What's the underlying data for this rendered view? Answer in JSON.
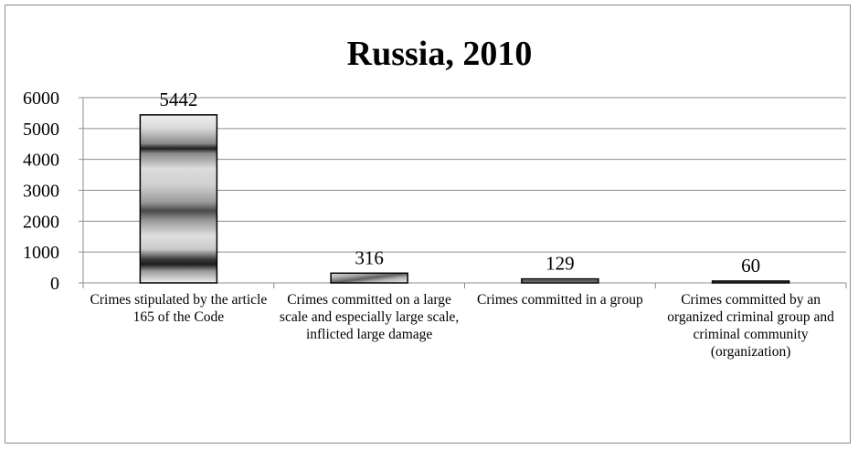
{
  "chart_data": {
    "type": "bar",
    "title": "Russia, 2010",
    "categories": [
      "Crimes stipulated by the article 165 of the Code",
      "Crimes committed on a large scale and especially large scale, inflicted large damage",
      "Crimes committed in a group",
      "Crimes committed by an organized criminal group and criminal community (organization)"
    ],
    "values": [
      5442,
      316,
      129,
      60
    ],
    "data_labels": [
      "5442",
      "316",
      "129",
      "60"
    ],
    "ylim": [
      0,
      6000
    ],
    "yticks": [
      0,
      1000,
      2000,
      3000,
      4000,
      5000,
      6000
    ],
    "ytick_labels": [
      "0",
      "1000",
      "2000",
      "3000",
      "4000",
      "5000",
      "6000"
    ],
    "grid": true,
    "legend": "none",
    "colors": {
      "gridline": "#8c8c8c",
      "axis": "#8c8c8c",
      "bar_outline": "#000000",
      "bar_light": "#e6e6e6",
      "bar_dark": "#2a2a2a"
    }
  }
}
